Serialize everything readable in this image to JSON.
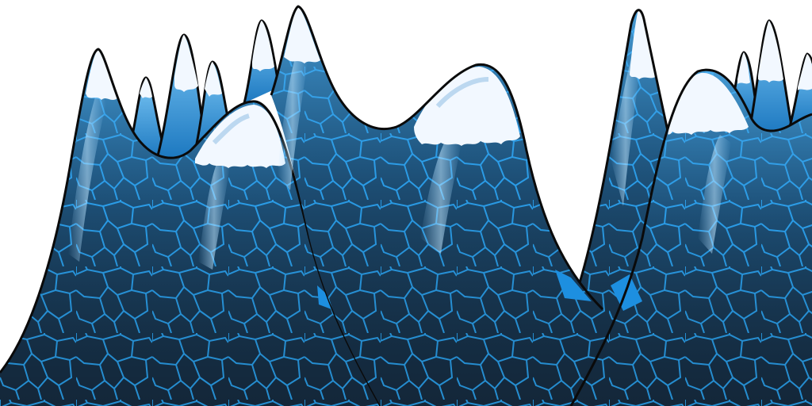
{
  "scene": {
    "kind": "ice-mountain-range backdrop",
    "layers": [
      {
        "name": "far-left-peaks",
        "snow_capped": true
      },
      {
        "name": "left-mountain",
        "snow_capped": true
      },
      {
        "name": "center-mountain",
        "snow_capped": true
      },
      {
        "name": "right-mountain",
        "snow_capped": true
      },
      {
        "name": "far-right-peaks",
        "snow_capped": true
      }
    ],
    "texture": "voronoi-ice-cells"
  },
  "colors": {
    "background": "#ffffff",
    "ice_light": "#5cb6f0",
    "ice_mid": "#1f7fc4",
    "ice_dark": "#12263a",
    "cell_line": "#2aa2ee",
    "snow": "#f2f8ff",
    "snow_shadow": "#bcd8f0",
    "outline": "#0a0a0a"
  }
}
